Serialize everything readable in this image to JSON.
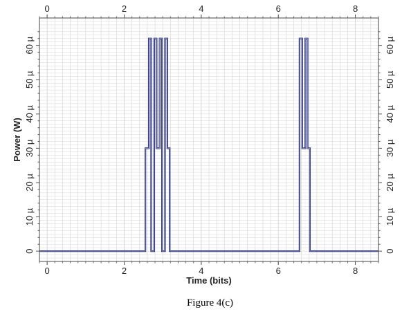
{
  "caption": "Figure 4(c)",
  "chart_data": {
    "type": "line",
    "title": "",
    "xlabel": "Time (bits)",
    "ylabel": "Power (W)",
    "xlim": [
      -0.2,
      8.6
    ],
    "ylim": [
      -3,
      68
    ],
    "xticks": [
      0,
      2,
      4,
      6,
      8
    ],
    "xtick_labels": [
      "0",
      "2",
      "4",
      "6",
      "8"
    ],
    "yticks": [
      0,
      10,
      20,
      30,
      40,
      50,
      60
    ],
    "ytick_labels": [
      "0",
      "10 µ",
      "20 µ",
      "30 µ",
      "40 µ",
      "50 µ",
      "60 µ"
    ],
    "grid": true,
    "series_color": "#1a237e",
    "grid_color": "#d4d4d4",
    "series": [
      {
        "x": [
          -0.2,
          2.55,
          2.55,
          2.64,
          2.64,
          2.7,
          2.7,
          2.78,
          2.78,
          2.84,
          2.84,
          2.92,
          2.92,
          2.98,
          2.98,
          3.06,
          3.06,
          3.12,
          3.12,
          3.18,
          3.18,
          6.55,
          6.55,
          6.62,
          6.62,
          6.7,
          6.7,
          6.76,
          6.76,
          6.82,
          6.82,
          8.6
        ],
        "y": [
          0,
          0,
          30,
          30,
          62,
          62,
          0,
          0,
          62,
          62,
          30,
          30,
          62,
          62,
          0,
          0,
          62,
          62,
          30,
          30,
          0,
          0,
          62,
          62,
          30,
          30,
          62,
          62,
          30,
          30,
          0,
          0
        ]
      }
    ]
  }
}
